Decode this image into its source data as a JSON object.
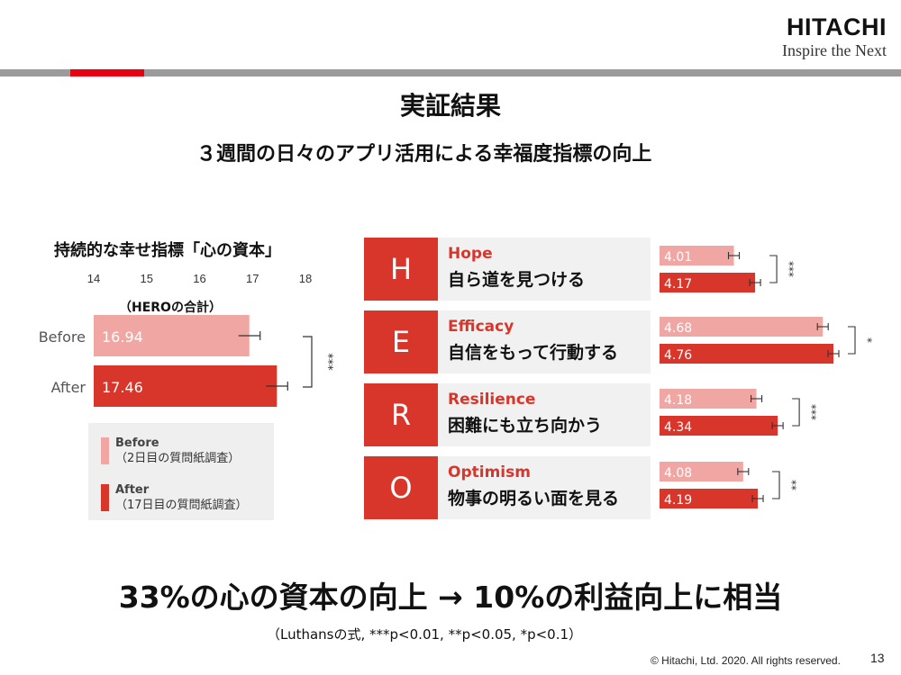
{
  "header": {
    "brand": "HITACHI",
    "tagline": "Inspire the Next"
  },
  "title": "実証結果",
  "subtitle": "３週間の日々のアプリ活用による幸福度指標の向上",
  "colors": {
    "before": "#f0a6a2",
    "after": "#d9362b",
    "accent_red": "#e60012",
    "bar_gray": "#9b9b9b"
  },
  "left_chart": {
    "title": "持続的な幸せ指標「心の資本」",
    "sublabel": "（HEROの合計）",
    "significance": "***",
    "legend": [
      {
        "label": "Before",
        "detail": "（2日目の質問紙調査）"
      },
      {
        "label": "After",
        "detail": "（17日目の質問紙調査）"
      }
    ]
  },
  "hero_items": [
    {
      "letter": "H",
      "en": "Hope",
      "ja": "自ら道を見つける"
    },
    {
      "letter": "E",
      "en": "Efficacy",
      "ja": "自信をもって行動する"
    },
    {
      "letter": "R",
      "en": "Resilience",
      "ja": "困難にも立ち向かう"
    },
    {
      "letter": "O",
      "en": "Optimism",
      "ja": "物事の明るい面を見る"
    }
  ],
  "chart_data": [
    {
      "type": "bar",
      "orientation": "horizontal",
      "title": "持続的な幸せ指標「心の資本」",
      "categories": [
        "Before",
        "After"
      ],
      "values": [
        16.94,
        17.46
      ],
      "xlim": [
        14,
        18
      ],
      "xticks": [
        14,
        15,
        16,
        17,
        18
      ],
      "error_bars": true,
      "significance": "***"
    },
    {
      "type": "bar",
      "orientation": "horizontal",
      "categories": [
        "Hope",
        "Efficacy",
        "Resilience",
        "Optimism"
      ],
      "series": [
        {
          "name": "Before",
          "values": [
            4.01,
            4.68,
            4.18,
            4.08
          ]
        },
        {
          "name": "After",
          "values": [
            4.17,
            4.76,
            4.34,
            4.19
          ]
        }
      ],
      "significance": [
        "***",
        "*",
        "***",
        "**"
      ],
      "error_bars": true
    }
  ],
  "bottom_message": "33%の心の資本の向上 → 10%の利益向上に相当",
  "footnote": "（Luthansの式, ***p<0.01, **p<0.05, *p<0.1）",
  "copyright": "© Hitachi, Ltd. 2020. All rights reserved.",
  "page_number": "13"
}
